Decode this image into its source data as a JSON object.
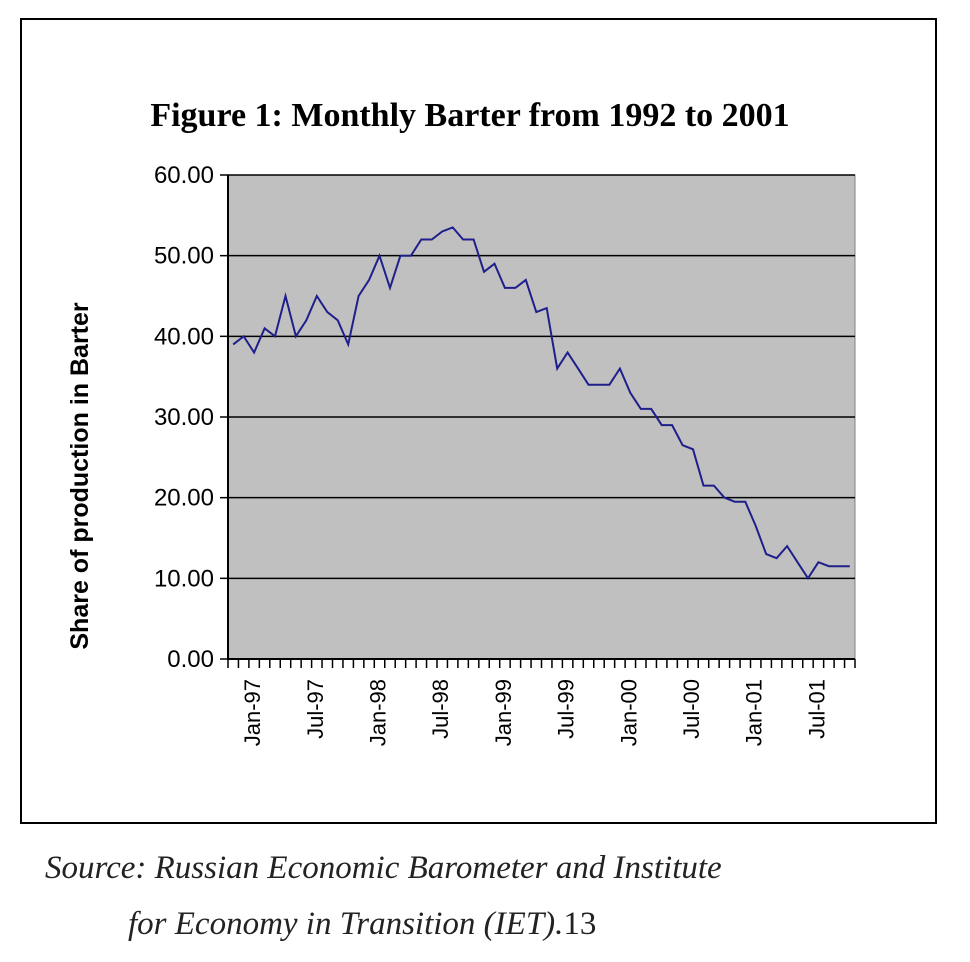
{
  "chart_data": {
    "type": "line",
    "title": "Figure 1: Monthly Barter from 1992 to 2001",
    "ylabel": "Share of production in Barter",
    "xlabel": "",
    "ylim": [
      0,
      60
    ],
    "yticks": [
      "0.00",
      "10.00",
      "20.00",
      "30.00",
      "40.00",
      "50.00",
      "60.00"
    ],
    "x_tick_labels": [
      "Jan-97",
      "Jul-97",
      "Jan-98",
      "Jul-98",
      "Jan-99",
      "Jul-99",
      "Jan-00",
      "Jul-00",
      "Jan-01",
      "Jul-01"
    ],
    "x_tick_label_start_index": 2,
    "x_tick_label_step": 6,
    "grid": "horizontal",
    "colors": {
      "plot_bg": "#c0c0c0",
      "line": "#1f1f8c"
    },
    "series": [
      {
        "values": [
          39,
          40,
          38,
          41,
          40,
          45,
          40,
          42,
          45,
          43,
          42,
          39,
          45,
          47,
          50,
          46,
          50,
          50,
          52,
          52,
          53,
          53.5,
          52,
          52,
          48,
          49,
          46,
          46,
          47,
          43,
          43.5,
          36,
          38,
          36,
          34,
          34,
          34,
          36,
          33,
          31,
          31,
          29,
          29,
          26.5,
          26,
          21.5,
          21.5,
          20,
          19.5,
          19.5,
          16.5,
          13,
          12.5,
          14,
          12,
          10,
          12,
          11.5,
          11.5,
          11.5
        ]
      }
    ]
  },
  "caption": {
    "line1": "Source: Russian Economic Barometer and Institute",
    "line2": "for Economy in Transition (IET).",
    "footnote": "13"
  }
}
